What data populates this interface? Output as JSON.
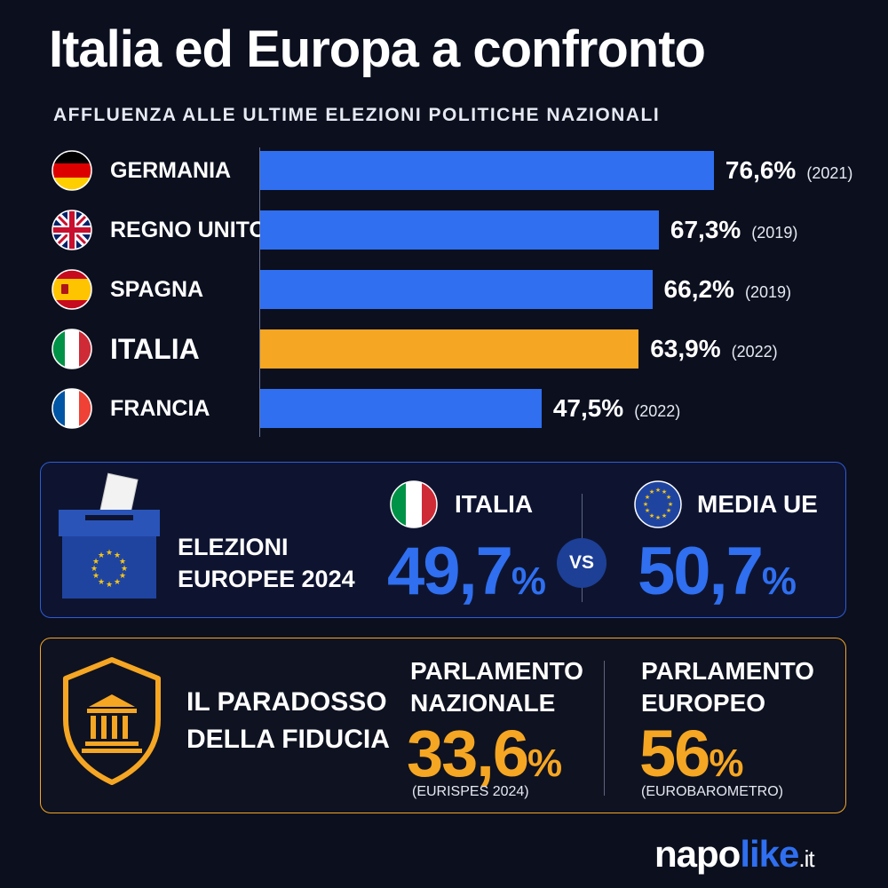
{
  "title": "Italia ed Europa a confronto",
  "subtitle": "AFFLUENZA ALLE ULTIME ELEZIONI POLITICHE NAZIONALI",
  "chart_data": {
    "type": "bar",
    "orientation": "horizontal",
    "title": "Italia ed Europa a confronto",
    "subtitle": "AFFLUENZA ALLE ULTIME ELEZIONI POLITICHE NAZIONALI",
    "categories": [
      "GERMANIA",
      "REGNO UNITO",
      "SPAGNA",
      "ITALIA",
      "FRANCIA"
    ],
    "values": [
      76.6,
      67.3,
      66.2,
      63.9,
      47.5
    ],
    "value_labels": [
      "76,6%",
      "67,3%",
      "66,2%",
      "63,9%",
      "47,5%"
    ],
    "years": [
      "(2021)",
      "(2019)",
      "(2019)",
      "(2022)",
      "(2022)"
    ],
    "flags": [
      "germany-flag",
      "uk-flag",
      "spain-flag",
      "italy-flag",
      "france-flag"
    ],
    "highlight": "ITALIA",
    "colors": {
      "default": "#2f6ff0",
      "highlight": "#f5a623"
    },
    "xlim": [
      0,
      100
    ],
    "grid": false
  },
  "european_elections": {
    "label_line1": "ELEZIONI",
    "label_line2": "EUROPEE 2024",
    "italy_label": "ITALIA",
    "italy_value": "49,7",
    "eu_label": "MEDIA UE",
    "eu_value": "50,7",
    "unit": "%",
    "vs": "VS",
    "icon": "ballot-box-icon"
  },
  "trust_paradox": {
    "label_line1": "IL PARADOSSO",
    "label_line2": "DELLA FIDUCIA",
    "national_line1": "PARLAMENTO",
    "national_line2": "NAZIONALE",
    "national_value": "33,6",
    "national_source": "(EURISPES 2024)",
    "european_line1": "PARLAMENTO",
    "european_line2": "EUROPEO",
    "european_value": "56",
    "european_source": "(EUROBAROMETRO)",
    "unit": "%",
    "icon": "parliament-shield-icon"
  },
  "brand": {
    "part1": "napo",
    "part2": "like",
    "part3": ".it"
  }
}
